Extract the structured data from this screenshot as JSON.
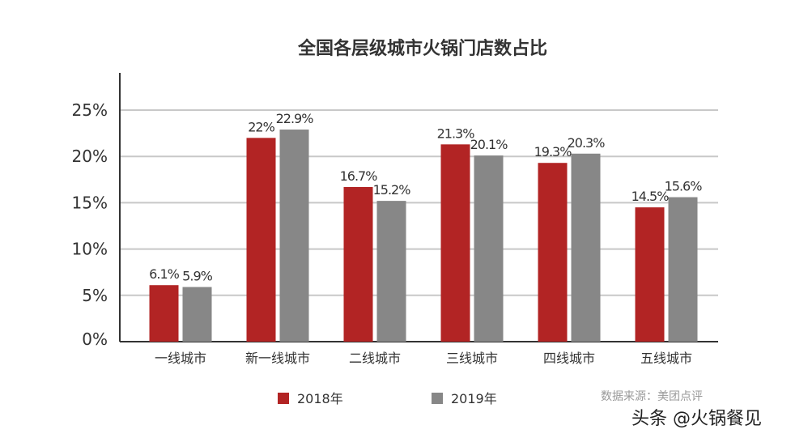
{
  "chart_data": {
    "type": "bar",
    "title": "全国各层级城市火锅门店数占比",
    "categories": [
      "一线城市",
      "新一线城市",
      "二线城市",
      "三线城市",
      "四线城市",
      "五线城市"
    ],
    "series": [
      {
        "name": "2018年",
        "color": "#b22424",
        "values": [
          6.1,
          22,
          16.7,
          21.3,
          19.3,
          14.5
        ],
        "labels": [
          "6.1%",
          "22%",
          "16.7%",
          "21.3%",
          "19.3%",
          "14.5%"
        ]
      },
      {
        "name": "2019年",
        "color": "#878787",
        "values": [
          5.9,
          22.9,
          15.2,
          20.1,
          20.3,
          15.6
        ],
        "labels": [
          "5.9%",
          "22.9%",
          "15.2%",
          "20.1%",
          "20.3%",
          "15.6%"
        ]
      }
    ],
    "yticks": [
      "0%",
      "5%",
      "10%",
      "15%",
      "20%",
      "25%"
    ],
    "ylim": [
      0,
      25
    ],
    "grid": true,
    "legend": "bottom",
    "xlabel": "",
    "ylabel": ""
  },
  "source": "数据来源：美团点评",
  "watermark": "头条 @火锅餐见"
}
